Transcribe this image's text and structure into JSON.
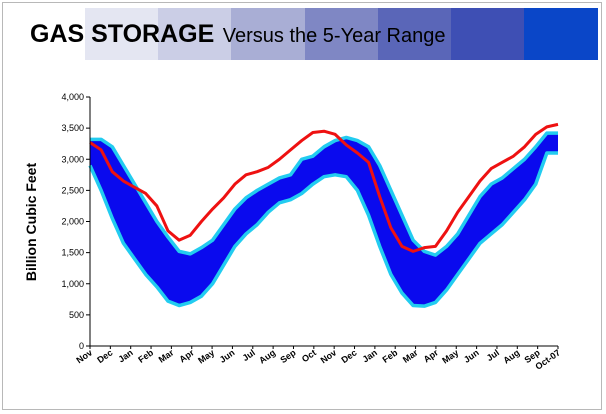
{
  "title": {
    "main": "GAS STORAGE",
    "sub": "Versus the 5-Year Range"
  },
  "band_colors": [
    "#ffffff",
    "#e4e6f2",
    "#cbcee6",
    "#a9aed5",
    "#7f87c4",
    "#5a66b8",
    "#3e4fb4",
    "#0a46c8"
  ],
  "colors": {
    "range_fill": "#0a0aee",
    "range_edge": "#22ccf0",
    "current_line": "#ee1111",
    "axis": "#000000"
  },
  "chart_data": {
    "type": "area",
    "title": "GAS STORAGE Versus the 5-Year Range",
    "ylabel": "Billion Cubic Feet",
    "xlabel": "",
    "ylim": [
      0,
      4000
    ],
    "yticks": [
      0,
      500,
      1000,
      1500,
      2000,
      2500,
      3000,
      3500,
      4000
    ],
    "ytick_labels": [
      "0",
      "500",
      "1,000",
      "1,500",
      "2,000",
      "2,500",
      "3,000",
      "3,500",
      "4,000"
    ],
    "x_labels": [
      "Nov",
      "Dec",
      "Jan",
      "Feb",
      "Mar",
      "Apr",
      "May",
      "Jun",
      "Jul",
      "Aug",
      "Sep",
      "Oct",
      "Nov",
      "Dec",
      "Jan",
      "Feb",
      "Mar",
      "Apr",
      "May",
      "Jun",
      "Jul",
      "Aug",
      "Sep",
      "Oct-07"
    ],
    "grid": false,
    "series": [
      {
        "kind": "range-max",
        "values": [
          3320,
          3320,
          3200,
          2900,
          2600,
          2300,
          2000,
          1750,
          1520,
          1480,
          1580,
          1700,
          1950,
          2200,
          2380,
          2500,
          2600,
          2700,
          2750,
          3000,
          3050,
          3200,
          3300,
          3350,
          3300,
          3200,
          2900,
          2500,
          2100,
          1700,
          1520,
          1460,
          1600,
          1800,
          2100,
          2400,
          2600,
          2700,
          2850,
          3000,
          3200,
          3420,
          3420
        ]
      },
      {
        "kind": "range-min",
        "values": [
          2900,
          2500,
          2050,
          1650,
          1400,
          1150,
          950,
          720,
          650,
          700,
          800,
          1000,
          1300,
          1600,
          1800,
          1950,
          2150,
          2300,
          2350,
          2450,
          2600,
          2720,
          2750,
          2720,
          2500,
          2100,
          1600,
          1150,
          850,
          650,
          640,
          700,
          900,
          1150,
          1400,
          1650,
          1800,
          1950,
          2150,
          2350,
          2600,
          3100,
          3100
        ]
      },
      {
        "kind": "current",
        "values": [
          3270,
          3150,
          2800,
          2650,
          2550,
          2450,
          2250,
          1850,
          1700,
          1780,
          2000,
          2200,
          2380,
          2600,
          2750,
          2800,
          2870,
          3000,
          3150,
          3300,
          3430,
          3450,
          3400,
          3230,
          3100,
          2950,
          2400,
          1900,
          1600,
          1520,
          1580,
          1600,
          1850,
          2150,
          2400,
          2650,
          2850,
          2950,
          3050,
          3200,
          3400,
          3520,
          3560
        ]
      }
    ]
  }
}
